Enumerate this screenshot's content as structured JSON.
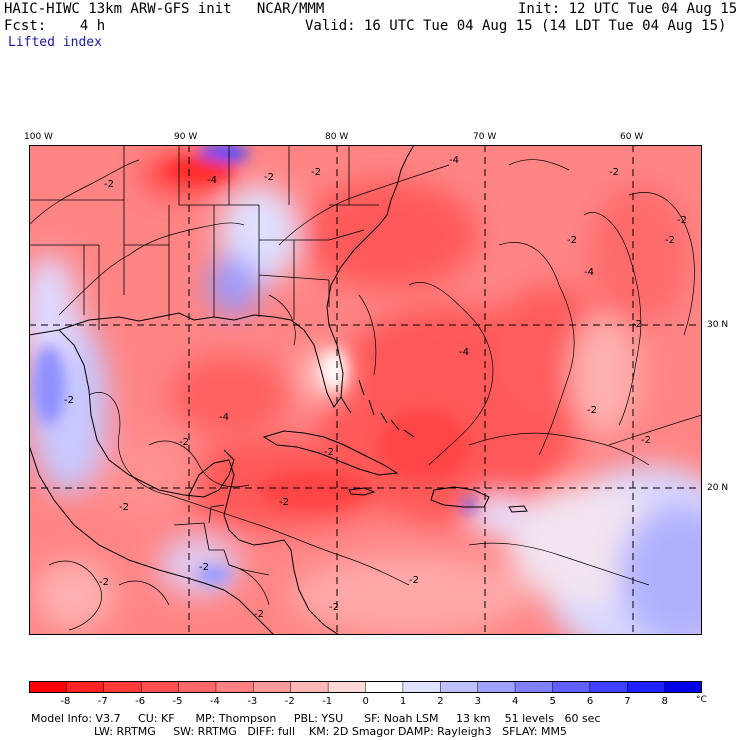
{
  "header": {
    "title_left": "HAIC-HIWC 13km ARW-GFS init   NCAR/MMM",
    "init": "Init: 12 UTC Tue 04 Aug 15",
    "fcst": "Fcst:    4 h",
    "valid": "Valid: 16 UTC Tue 04 Aug 15 (14 LDT Tue 04 Aug 15)",
    "field": "Lifted index"
  },
  "map": {
    "lon_labels": [
      "100 W",
      "90 W",
      "80 W",
      "70 W",
      "60 W"
    ],
    "lat_labels": [
      "30 N",
      "20 N"
    ],
    "contour_labels": [
      "-2",
      "-4",
      "-2",
      "-2",
      "-4",
      "-2",
      "-2",
      "-4",
      "-2",
      "-2",
      "-2",
      "-4",
      "-2",
      "-2",
      "-2",
      "-4",
      "-2",
      "-2",
      "-2",
      "-2",
      "-2",
      "-2",
      "-2",
      "-2",
      "-2"
    ]
  },
  "colorbar": {
    "labels": [
      "-8",
      "-7",
      "-6",
      "-5",
      "-4",
      "-3",
      "-2",
      "-1",
      "0",
      "1",
      "2",
      "3",
      "4",
      "5",
      "6",
      "7",
      "8"
    ],
    "unit": "°C",
    "colors": [
      "#ff0000",
      "#ff2222",
      "#ff3a3a",
      "#ff5050",
      "#ff6868",
      "#ff8080",
      "#ff9a9a",
      "#ffb8b8",
      "#ffd8d8",
      "#ffffff",
      "#e0e0ff",
      "#c0c0ff",
      "#a0a0ff",
      "#8080ff",
      "#6060ff",
      "#4040ff",
      "#2020ff",
      "#0000e8"
    ]
  },
  "footer": {
    "line1": "Model Info: V3.7     CU: KF      MP: Thompson     PBL: YSU      SF: Noah LSM     13 km    51 levels   60 sec",
    "line2": "                  LW: RRTMG     SW: RRTMG   DIFF: full    KM: 2D Smagor DAMP: Rayleigh3   SFLAY: MM5"
  }
}
